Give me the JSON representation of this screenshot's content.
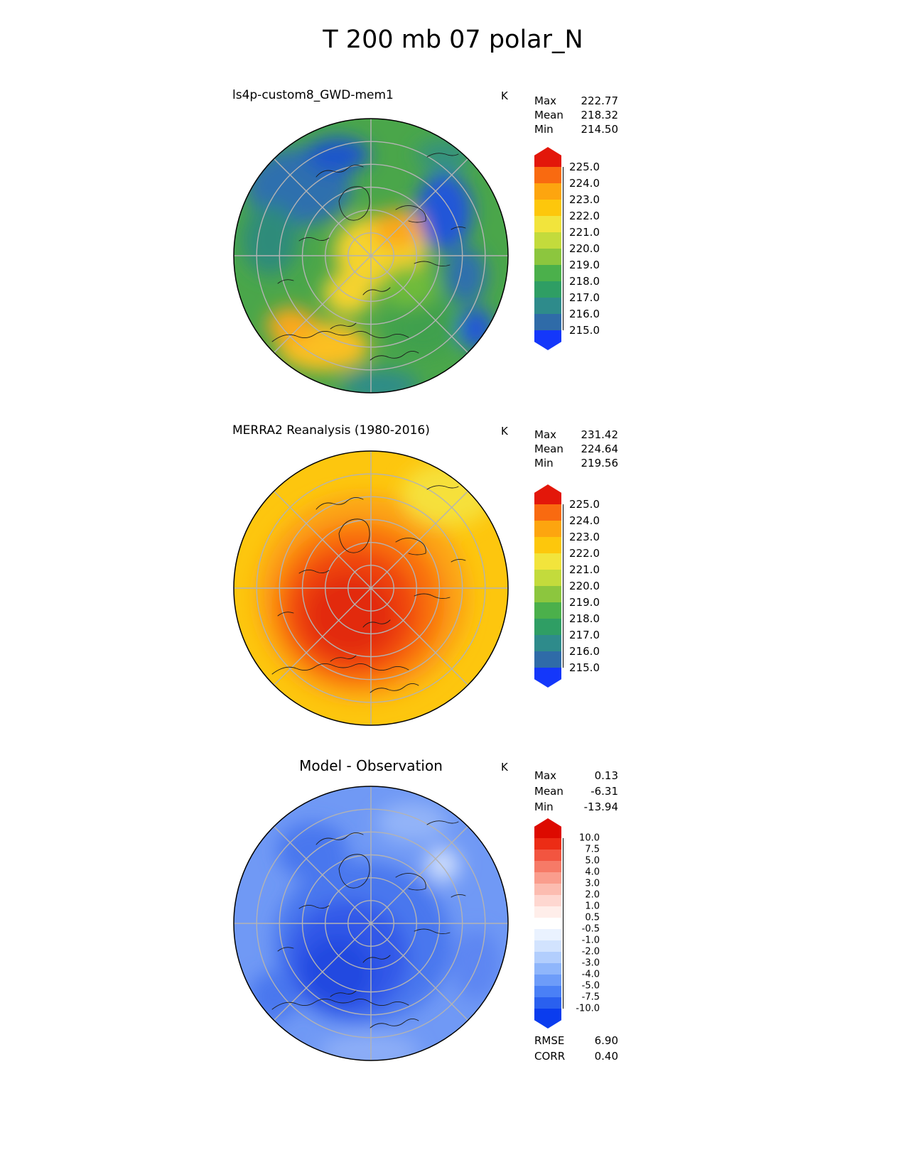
{
  "page_title": "T 200 mb 07 polar_N",
  "panels": [
    {
      "title": "ls4p-custom8_GWD-mem1",
      "unit": "K",
      "stats": [
        {
          "label": "Max",
          "value": "222.77"
        },
        {
          "label": "Mean",
          "value": "218.32"
        },
        {
          "label": "Min",
          "value": "214.50"
        }
      ],
      "colorbar": {
        "arrow_top": "#e3170a",
        "bands_top_to_bottom": [
          "#f96a10",
          "#fda50f",
          "#fdc70c",
          "#f2e43c",
          "#c3db3c",
          "#8cc63e",
          "#4bb04b",
          "#2f9e64",
          "#2e8b8b",
          "#2f6ba8"
        ],
        "arrow_bottom": "#1437fa",
        "labels_top_to_bottom": [
          "225.0",
          "224.0",
          "223.0",
          "222.0",
          "221.0",
          "220.0",
          "219.0",
          "218.0",
          "217.0",
          "216.0",
          "215.0"
        ]
      }
    },
    {
      "title": "MERRA2 Reanalysis (1980-2016)",
      "unit": "K",
      "stats": [
        {
          "label": "Max",
          "value": "231.42"
        },
        {
          "label": "Mean",
          "value": "224.64"
        },
        {
          "label": "Min",
          "value": "219.56"
        }
      ],
      "colorbar": {
        "arrow_top": "#e3170a",
        "bands_top_to_bottom": [
          "#f96a10",
          "#fda50f",
          "#fdc70c",
          "#f2e43c",
          "#c3db3c",
          "#8cc63e",
          "#4bb04b",
          "#2f9e64",
          "#2e8b8b",
          "#2f6ba8"
        ],
        "arrow_bottom": "#1437fa",
        "labels_top_to_bottom": [
          "225.0",
          "224.0",
          "223.0",
          "222.0",
          "221.0",
          "220.0",
          "219.0",
          "218.0",
          "217.0",
          "216.0",
          "215.0"
        ]
      }
    },
    {
      "title": "Model - Observation",
      "unit": "K",
      "stats": [
        {
          "label": "Max",
          "value": "0.13"
        },
        {
          "label": "Mean",
          "value": "-6.31"
        },
        {
          "label": "Min",
          "value": "-13.94"
        }
      ],
      "extra_stats": [
        {
          "label": "RMSE",
          "value": "6.90"
        },
        {
          "label": "CORR",
          "value": "0.40"
        }
      ],
      "colorbar": {
        "arrow_top": "#dd0a00",
        "bands_top_to_bottom": [
          "#ec2c15",
          "#f25540",
          "#f67a67",
          "#fa9d8d",
          "#fcbcb0",
          "#fed7d0",
          "#ffeeea",
          "#ffffff",
          "#eaf2ff",
          "#d2e3fe",
          "#b2cefd",
          "#8fb6fb",
          "#6d9cf9",
          "#4a80f6",
          "#2a60ef"
        ],
        "arrow_bottom": "#0a3cee",
        "labels_top_to_bottom": [
          "10.0",
          "7.5",
          "5.0",
          "4.0",
          "3.0",
          "2.0",
          "1.0",
          "0.5",
          "-0.5",
          "-1.0",
          "-2.0",
          "-3.0",
          "-4.0",
          "-5.0",
          "-7.5",
          "-10.0"
        ]
      }
    }
  ],
  "chart_data": [
    {
      "type": "heatmap",
      "subtype": "filled-contour polar stereographic map, Northern Hemisphere",
      "title": "ls4p-custom8_GWD-mem1",
      "figure_title": "T 200 mb 07 polar_N",
      "units": "K",
      "stats": {
        "max": 222.77,
        "mean": 218.32,
        "min": 214.5
      },
      "contour_levels": [
        215.0,
        216.0,
        217.0,
        218.0,
        219.0,
        220.0,
        221.0,
        222.0,
        223.0,
        224.0,
        225.0
      ],
      "palette_low_to_high": [
        "#1437fa",
        "#2f6ba8",
        "#2e8b8b",
        "#2f9e64",
        "#4bb04b",
        "#8cc63e",
        "#c3db3c",
        "#f2e43c",
        "#fdc70c",
        "#fda50f",
        "#f96a10",
        "#e3170a"
      ],
      "legend_position": "right",
      "grid": "polar graticule, gray"
    },
    {
      "type": "heatmap",
      "subtype": "filled-contour polar stereographic map, Northern Hemisphere",
      "title": "MERRA2 Reanalysis (1980-2016)",
      "units": "K",
      "stats": {
        "max": 231.42,
        "mean": 224.64,
        "min": 219.56
      },
      "contour_levels": [
        215.0,
        216.0,
        217.0,
        218.0,
        219.0,
        220.0,
        221.0,
        222.0,
        223.0,
        224.0,
        225.0
      ],
      "palette_low_to_high": [
        "#1437fa",
        "#2f6ba8",
        "#2e8b8b",
        "#2f9e64",
        "#4bb04b",
        "#8cc63e",
        "#c3db3c",
        "#f2e43c",
        "#fdc70c",
        "#fda50f",
        "#f96a10",
        "#e3170a"
      ],
      "legend_position": "right",
      "grid": "polar graticule, gray"
    },
    {
      "type": "heatmap",
      "subtype": "difference map (model minus observation), polar stereographic, Northern Hemisphere",
      "title": "Model - Observation",
      "units": "K",
      "stats": {
        "max": 0.13,
        "mean": -6.31,
        "min": -13.94
      },
      "rmse": 6.9,
      "corr": 0.4,
      "contour_levels": [
        -10.0,
        -7.5,
        -5.0,
        -4.0,
        -3.0,
        -2.0,
        -1.0,
        -0.5,
        0.5,
        1.0,
        2.0,
        3.0,
        4.0,
        5.0,
        7.5,
        10.0
      ],
      "palette_low_to_high": [
        "#0a3cee",
        "#2a60ef",
        "#4a80f6",
        "#6d9cf9",
        "#8fb6fb",
        "#b2cefd",
        "#d2e3fe",
        "#eaf2ff",
        "#ffffff",
        "#ffeeea",
        "#fed7d0",
        "#fcbcb0",
        "#fa9d8d",
        "#f67a67",
        "#f25540",
        "#ec2c15",
        "#dd0a00"
      ],
      "legend_position": "right",
      "grid": "polar graticule, gray"
    }
  ]
}
